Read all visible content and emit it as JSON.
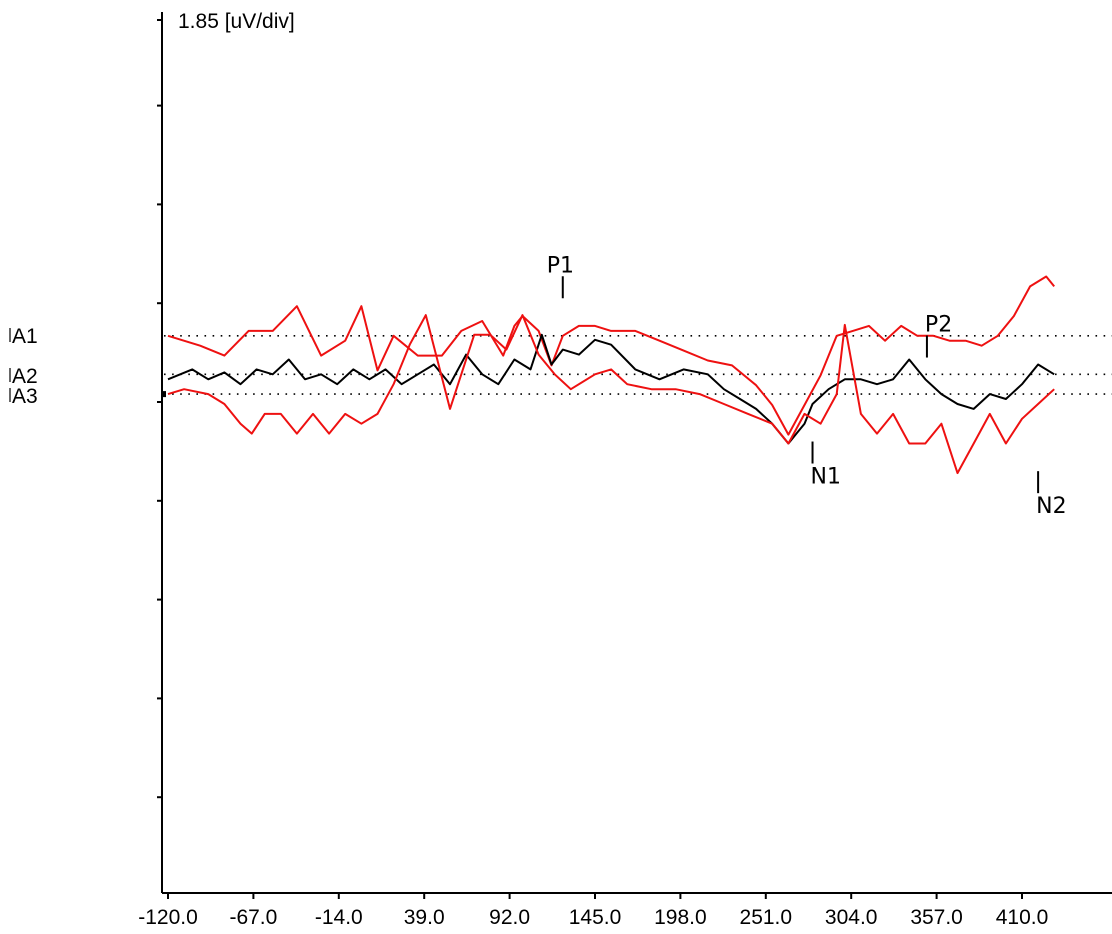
{
  "chart_data": {
    "type": "line",
    "scale_label": "1.85 [uV/div]",
    "uv_per_div": 1.85,
    "x_ticks": [
      "-120.0",
      "-67.0",
      "-14.0",
      "39.0",
      "92.0",
      "145.0",
      "198.0",
      "251.0",
      "304.0",
      "357.0",
      "410.0"
    ],
    "xlim": [
      -120,
      430
    ],
    "ylim_div": [
      -5,
      4
    ],
    "traces": [
      {
        "name": "A1",
        "color": "#ee1111",
        "baseline_div": 0.67
      },
      {
        "name": "A2",
        "color": "#000000",
        "baseline_div": 0.28
      },
      {
        "name": "A3",
        "color": "#ee1111",
        "baseline_div": 0.08
      }
    ],
    "series": [
      {
        "color": "#ee1111",
        "baseline_div": 0.67,
        "x": [
          -120,
          -100,
          -85,
          -70,
          -55,
          -40,
          -25,
          -10,
          0,
          10,
          20,
          35,
          50,
          62,
          75,
          88,
          95,
          100,
          110,
          118,
          125,
          135,
          145,
          155,
          170,
          185,
          200,
          215,
          230,
          245,
          255,
          265,
          275,
          285,
          295,
          305,
          315,
          325,
          335,
          345,
          355,
          365,
          375,
          385,
          395,
          405,
          415,
          425,
          430
        ],
        "y_div": [
          0.0,
          -0.1,
          -0.2,
          0.05,
          0.05,
          0.3,
          -0.2,
          -0.05,
          0.3,
          -0.35,
          0.0,
          -0.2,
          -0.2,
          0.05,
          0.15,
          -0.2,
          0.1,
          0.2,
          0.05,
          -0.3,
          0.0,
          0.1,
          0.1,
          0.05,
          0.05,
          -0.05,
          -0.15,
          -0.25,
          -0.3,
          -0.5,
          -0.7,
          -1.0,
          -0.7,
          -0.4,
          0.0,
          0.05,
          0.1,
          -0.05,
          0.1,
          0.0,
          0.0,
          -0.05,
          -0.05,
          -0.1,
          0.0,
          0.2,
          0.5,
          0.6,
          0.5
        ]
      },
      {
        "color": "#000000",
        "baseline_div": 0.28,
        "x": [
          -120,
          -105,
          -95,
          -85,
          -75,
          -65,
          -55,
          -45,
          -35,
          -25,
          -15,
          -5,
          5,
          15,
          25,
          35,
          45,
          55,
          65,
          75,
          85,
          95,
          105,
          112,
          118,
          125,
          135,
          145,
          155,
          170,
          185,
          200,
          215,
          225,
          235,
          245,
          255,
          265,
          270,
          275,
          280,
          290,
          300,
          310,
          320,
          330,
          340,
          350,
          360,
          370,
          380,
          390,
          400,
          410,
          420,
          430
        ],
        "y_div": [
          -0.05,
          0.05,
          -0.05,
          0.02,
          -0.1,
          0.05,
          0.0,
          0.15,
          -0.05,
          0.0,
          -0.1,
          0.05,
          -0.05,
          0.05,
          -0.1,
          0.0,
          0.1,
          -0.1,
          0.2,
          0.0,
          -0.1,
          0.15,
          0.05,
          0.4,
          0.1,
          0.25,
          0.2,
          0.35,
          0.3,
          0.05,
          -0.05,
          0.05,
          0.0,
          -0.15,
          -0.25,
          -0.35,
          -0.5,
          -0.7,
          -0.6,
          -0.5,
          -0.3,
          -0.15,
          -0.05,
          -0.05,
          -0.1,
          -0.05,
          0.15,
          -0.05,
          -0.2,
          -0.3,
          -0.35,
          -0.2,
          -0.25,
          -0.1,
          0.1,
          0.0
        ]
      },
      {
        "color": "#ee1111",
        "baseline_div": 0.08,
        "x": [
          -120,
          -110,
          -95,
          -85,
          -75,
          -68,
          -60,
          -50,
          -40,
          -30,
          -20,
          -10,
          0,
          10,
          20,
          30,
          40,
          55,
          70,
          80,
          90,
          100,
          110,
          120,
          130,
          145,
          155,
          165,
          180,
          195,
          210,
          225,
          240,
          255,
          265,
          275,
          285,
          295,
          300,
          310,
          320,
          330,
          340,
          350,
          360,
          370,
          380,
          390,
          400,
          410,
          420,
          430
        ],
        "y_div": [
          0.0,
          0.05,
          0.0,
          -0.1,
          -0.3,
          -0.4,
          -0.2,
          -0.2,
          -0.4,
          -0.2,
          -0.4,
          -0.2,
          -0.3,
          -0.2,
          0.1,
          0.5,
          0.8,
          -0.15,
          0.6,
          0.6,
          0.45,
          0.8,
          0.4,
          0.2,
          0.05,
          0.2,
          0.25,
          0.1,
          0.05,
          0.05,
          0.0,
          -0.1,
          -0.2,
          -0.3,
          -0.5,
          -0.2,
          -0.3,
          0.0,
          0.7,
          -0.2,
          -0.4,
          -0.2,
          -0.5,
          -0.5,
          -0.3,
          -0.8,
          -0.5,
          -0.2,
          -0.5,
          -0.25,
          -0.1,
          0.05
        ]
      }
    ],
    "peaks": [
      {
        "name": "P1",
        "x": 125,
        "y_div": 1.05
      },
      {
        "name": "N1",
        "x": 280,
        "y_div": -0.4
      },
      {
        "name": "P2",
        "x": 351,
        "y_div": 0.45
      },
      {
        "name": "N2",
        "x": 420,
        "y_div": -0.7
      }
    ]
  }
}
